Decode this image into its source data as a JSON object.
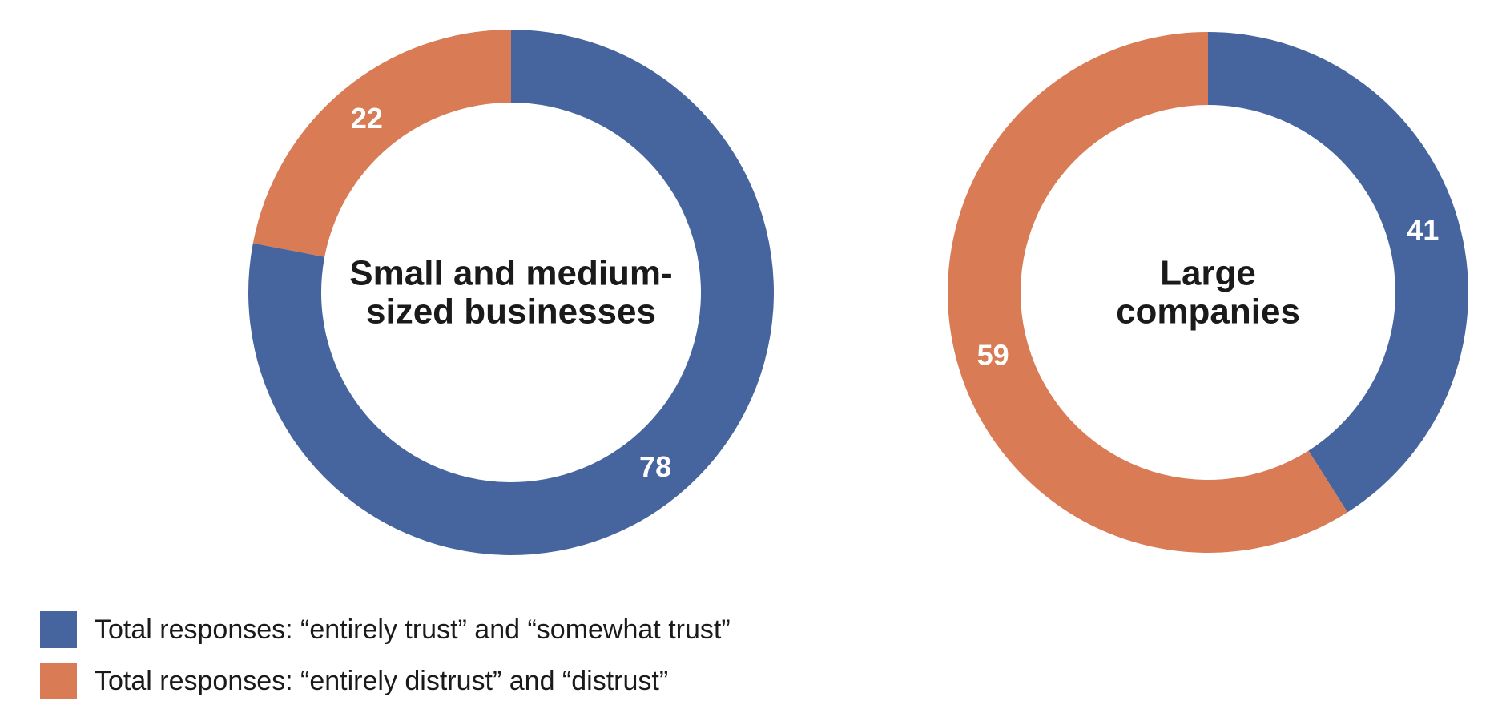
{
  "colors": {
    "trust": "#46659e",
    "distrust": "#d97b54"
  },
  "chart_data": [
    {
      "type": "pie",
      "donut": true,
      "title_lines": [
        "Small and medium-",
        "sized businesses"
      ],
      "slices": [
        {
          "category": "trust",
          "value": 78
        },
        {
          "category": "distrust",
          "value": 22
        }
      ]
    },
    {
      "type": "pie",
      "donut": true,
      "title_lines": [
        "Large",
        "companies"
      ],
      "slices": [
        {
          "category": "trust",
          "value": 41
        },
        {
          "category": "distrust",
          "value": 59
        }
      ]
    }
  ],
  "legend": [
    {
      "category": "trust",
      "label": "Total responses: “entirely trust” and “somewhat trust”"
    },
    {
      "category": "distrust",
      "label": "Total responses: “entirely distrust” and “distrust”"
    }
  ]
}
